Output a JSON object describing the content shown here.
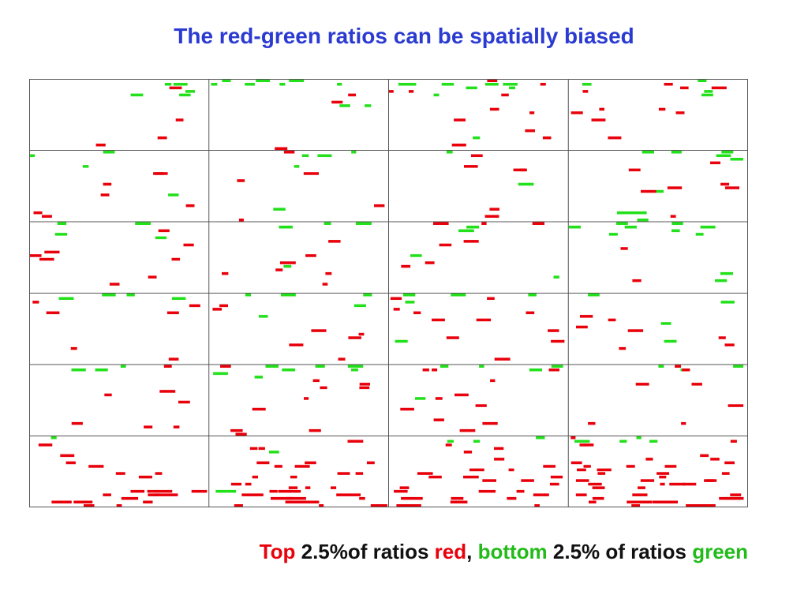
{
  "title": "The red-green ratios can be spatially biased",
  "caption": {
    "w1": "Top",
    "w2": " 2.5%of ratios ",
    "w3": "red",
    "w4": ", ",
    "w5": "bottom",
    "w6": " 2.5% of ratios ",
    "w7": "green"
  },
  "grid": {
    "columns": 4,
    "rows": 6,
    "red_color": "#e8000b",
    "green_color": "#22e01a",
    "line_color": "#555555"
  }
}
